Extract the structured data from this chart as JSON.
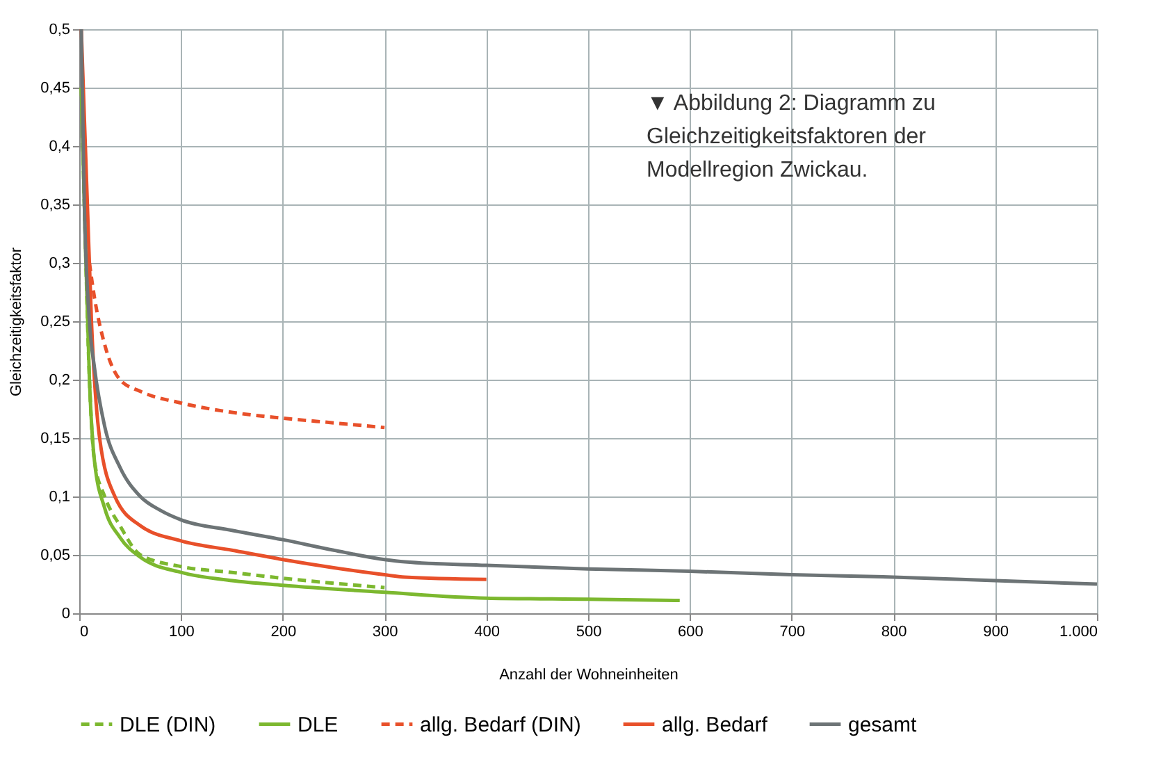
{
  "chart_data": {
    "type": "line",
    "xlabel": "Anzahl der Wohneinheiten",
    "ylabel": "Gleichzeitigkeitsfaktor",
    "annotations": [
      "▼ Abbildung 2: Diagramm zu Gleichzeitigkeitsfaktoren der Modellregion Zwickau."
    ],
    "xlim": [
      0,
      1000
    ],
    "xticks": [
      0,
      100,
      200,
      300,
      400,
      500,
      600,
      700,
      800,
      900,
      {
        "value": 1000,
        "label": "1.000"
      }
    ],
    "ylim": [
      0,
      0.5
    ],
    "yticks": [
      0,
      {
        "value": 0.05,
        "label": "0,05"
      },
      {
        "value": 0.1,
        "label": "0,1"
      },
      {
        "value": 0.15,
        "label": "0,15"
      },
      {
        "value": 0.2,
        "label": "0,2"
      },
      {
        "value": 0.25,
        "label": "0,25"
      },
      {
        "value": 0.3,
        "label": "0,3"
      },
      {
        "value": 0.35,
        "label": "0,35"
      },
      {
        "value": 0.4,
        "label": "0,4"
      },
      {
        "value": 0.45,
        "label": "0,45"
      },
      {
        "value": 0.5,
        "label": "0,5"
      }
    ],
    "grid": true,
    "legend": "bottom",
    "marker": "none",
    "series": [
      {
        "name": "DLE (DIN)",
        "color": "#7cb82f",
        "line_style": "dashed",
        "x": [
          2,
          5,
          10,
          15,
          25,
          40,
          60,
          100,
          150,
          200,
          300
        ],
        "values": [
          0.45,
          0.35,
          0.2,
          0.13,
          0.1,
          0.075,
          0.05,
          0.04,
          0.035,
          0.03,
          0.022
        ]
      },
      {
        "name": "DLE",
        "color": "#7cb82f",
        "line_style": "solid",
        "x": [
          2,
          5,
          10,
          15,
          25,
          40,
          60,
          100,
          150,
          200,
          300,
          400,
          500,
          590
        ],
        "values": [
          0.45,
          0.35,
          0.2,
          0.13,
          0.09,
          0.065,
          0.048,
          0.035,
          0.028,
          0.024,
          0.018,
          0.013,
          0.012,
          0.011
        ]
      },
      {
        "name": "allg. Bedarf (DIN)",
        "color": "#e8502a",
        "line_style": "dashed",
        "x": [
          10,
          15,
          25,
          40,
          60,
          100,
          150,
          200,
          250,
          300
        ],
        "values": [
          0.3,
          0.27,
          0.23,
          0.2,
          0.19,
          0.18,
          0.172,
          0.167,
          0.163,
          0.159
        ]
      },
      {
        "name": "allg. Bedarf",
        "color": "#e8502a",
        "line_style": "solid",
        "x": [
          2,
          8,
          12,
          20,
          35,
          60,
          100,
          150,
          200,
          250,
          300,
          320,
          400
        ],
        "values": [
          0.5,
          0.35,
          0.25,
          0.15,
          0.1,
          0.075,
          0.062,
          0.054,
          0.046,
          0.039,
          0.033,
          0.031,
          0.029
        ]
      },
      {
        "name": "gesamt",
        "color": "#6d7476",
        "line_style": "solid",
        "x": [
          2,
          5,
          10,
          15,
          25,
          40,
          60,
          80,
          100,
          150,
          200,
          250,
          300,
          320,
          400,
          500,
          600,
          700,
          800,
          900,
          1000
        ],
        "values": [
          0.5,
          0.35,
          0.25,
          0.21,
          0.16,
          0.125,
          0.1,
          0.088,
          0.08,
          0.071,
          0.063,
          0.054,
          0.046,
          0.044,
          0.041,
          0.038,
          0.036,
          0.033,
          0.031,
          0.028,
          0.025
        ]
      }
    ]
  }
}
